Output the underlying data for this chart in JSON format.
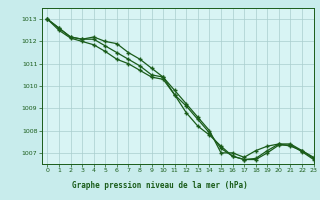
{
  "title": "Graphe pression niveau de la mer (hPa)",
  "bg_color": "#c8ecec",
  "plot_bg_color": "#d8f4f4",
  "line_color": "#1a5c1a",
  "grid_color": "#aacece",
  "title_bg": "#2a7a2a",
  "title_fg": "#ffffff",
  "ylim": [
    1006.5,
    1013.5
  ],
  "xlim": [
    -0.5,
    23
  ],
  "yticks": [
    1007,
    1008,
    1009,
    1010,
    1011,
    1012,
    1013
  ],
  "xticks": [
    0,
    1,
    2,
    3,
    4,
    5,
    6,
    7,
    8,
    9,
    10,
    11,
    12,
    13,
    14,
    15,
    16,
    17,
    18,
    19,
    20,
    21,
    22,
    23
  ],
  "line1": [
    1013.0,
    1012.6,
    1012.2,
    1012.1,
    1012.2,
    1012.0,
    1011.9,
    1011.5,
    1011.2,
    1010.8,
    1010.4,
    1009.8,
    1009.2,
    1008.6,
    1008.0,
    1007.0,
    1007.0,
    1006.8,
    1007.1,
    1007.3,
    1007.4,
    1007.3,
    1007.1,
    1006.8
  ],
  "line2": [
    1013.0,
    1012.6,
    1012.2,
    1012.1,
    1012.1,
    1011.8,
    1011.5,
    1011.2,
    1010.9,
    1010.5,
    1010.4,
    1009.6,
    1009.1,
    1008.5,
    1007.9,
    1007.2,
    1006.85,
    1006.7,
    1006.75,
    1007.1,
    1007.4,
    1007.4,
    1007.1,
    1006.75
  ],
  "line3": [
    1013.0,
    1012.5,
    1012.15,
    1012.0,
    1011.85,
    1011.55,
    1011.2,
    1011.0,
    1010.7,
    1010.4,
    1010.3,
    1009.6,
    1008.8,
    1008.2,
    1007.8,
    1007.3,
    1006.85,
    1006.7,
    1006.7,
    1007.0,
    1007.35,
    1007.35,
    1007.05,
    1006.7
  ]
}
